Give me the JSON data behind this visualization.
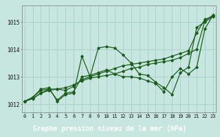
{
  "background_color": "#c8e6e0",
  "plot_bg_color": "#c8e6e0",
  "grid_color": "#aacccc",
  "line_color": "#1a5c1a",
  "footer_bg": "#2d6e2d",
  "footer_text_color": "#ffffff",
  "title": "Graphe pression niveau de la mer (hPa)",
  "title_fontsize": 7,
  "tick_fontsize": 5,
  "ylim": [
    1011.7,
    1015.6
  ],
  "xlim": [
    -0.3,
    23.3
  ],
  "yticks": [
    1012,
    1013,
    1014,
    1015
  ],
  "xticks": [
    0,
    1,
    2,
    3,
    4,
    5,
    6,
    7,
    8,
    9,
    10,
    11,
    12,
    13,
    14,
    15,
    16,
    17,
    18,
    19,
    20,
    21,
    22,
    23
  ],
  "series": [
    [
      1012.1,
      1012.2,
      1012.4,
      1012.55,
      1012.55,
      1012.5,
      1012.65,
      1012.9,
      1013.0,
      1013.1,
      1013.2,
      1013.3,
      1013.4,
      1013.45,
      1013.5,
      1013.55,
      1013.6,
      1013.65,
      1013.75,
      1013.85,
      1013.95,
      1014.6,
      1015.1,
      1015.2
    ],
    [
      1012.1,
      1012.25,
      1012.55,
      1012.6,
      1012.1,
      1012.35,
      1012.4,
      1013.75,
      1013.0,
      1014.05,
      1014.1,
      1014.05,
      1013.8,
      1013.5,
      1013.1,
      1013.05,
      1012.8,
      1012.6,
      1012.35,
      1013.15,
      1013.35,
      1014.8,
      1015.0,
      1015.2
    ],
    [
      1012.1,
      1012.25,
      1012.5,
      1012.55,
      1012.15,
      1012.4,
      1012.45,
      1013.0,
      1013.05,
      1013.15,
      1013.25,
      1013.1,
      1013.0,
      1013.0,
      1012.95,
      1012.85,
      1012.75,
      1012.45,
      1013.0,
      1013.3,
      1013.1,
      1013.35,
      1014.75,
      1015.25
    ],
    [
      1012.1,
      1012.2,
      1012.4,
      1012.5,
      1012.55,
      1012.6,
      1012.7,
      1012.85,
      1012.95,
      1013.0,
      1013.05,
      1013.1,
      1013.2,
      1013.3,
      1013.35,
      1013.45,
      1013.5,
      1013.55,
      1013.6,
      1013.7,
      1013.85,
      1014.0,
      1015.05,
      1015.25
    ]
  ]
}
